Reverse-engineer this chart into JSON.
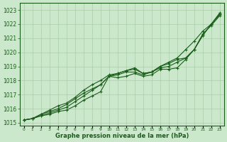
{
  "title": "Graphe pression niveau de la mer (hPa)",
  "xlabel_hours": [
    0,
    1,
    2,
    3,
    4,
    5,
    6,
    7,
    8,
    9,
    10,
    11,
    12,
    13,
    14,
    15,
    16,
    17,
    18,
    19,
    20,
    21,
    22,
    23
  ],
  "ylim": [
    1014.8,
    1023.5
  ],
  "yticks": [
    1015,
    1016,
    1017,
    1018,
    1019,
    1020,
    1021,
    1022,
    1023
  ],
  "bg_color": "#cce8cc",
  "grid_color": "#aaccaa",
  "line_color": "#1a5c1a",
  "series": [
    [
      1015.2,
      1015.3,
      1015.5,
      1015.6,
      1015.8,
      1015.9,
      1016.2,
      1016.6,
      1016.9,
      1017.2,
      1018.3,
      1018.2,
      1018.3,
      1018.5,
      1018.3,
      1018.4,
      1018.8,
      1018.8,
      1018.9,
      1019.5,
      1020.2,
      1021.2,
      1022.0,
      1022.7
    ],
    [
      1015.2,
      1015.3,
      1015.6,
      1015.8,
      1016.0,
      1016.3,
      1016.7,
      1017.1,
      1017.4,
      1017.7,
      1018.3,
      1018.4,
      1018.6,
      1018.6,
      1018.4,
      1018.6,
      1018.9,
      1019.0,
      1019.3,
      1019.6,
      1020.2,
      1021.2,
      1022.0,
      1022.7
    ],
    [
      1015.2,
      1015.3,
      1015.6,
      1015.9,
      1016.2,
      1016.4,
      1016.8,
      1017.3,
      1017.7,
      1018.0,
      1018.4,
      1018.5,
      1018.7,
      1018.8,
      1018.5,
      1018.6,
      1019.0,
      1019.2,
      1019.5,
      1019.6,
      1020.2,
      1021.3,
      1021.9,
      1022.6
    ]
  ],
  "series_high": [
    1015.2,
    1015.3,
    1015.5,
    1015.7,
    1015.9,
    1016.1,
    1016.5,
    1016.9,
    1017.3,
    1017.7,
    1018.3,
    1018.5,
    1018.7,
    1018.9,
    1018.5,
    1018.6,
    1019.0,
    1019.3,
    1019.6,
    1020.2,
    1020.8,
    1021.5,
    1022.0,
    1022.8
  ]
}
